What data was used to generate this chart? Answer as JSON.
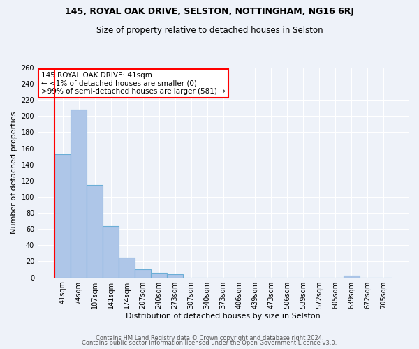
{
  "title": "145, ROYAL OAK DRIVE, SELSTON, NOTTINGHAM, NG16 6RJ",
  "subtitle": "Size of property relative to detached houses in Selston",
  "xlabel": "Distribution of detached houses by size in Selston",
  "ylabel": "Number of detached properties",
  "bar_labels": [
    "41sqm",
    "74sqm",
    "107sqm",
    "141sqm",
    "174sqm",
    "207sqm",
    "240sqm",
    "273sqm",
    "307sqm",
    "340sqm",
    "373sqm",
    "406sqm",
    "439sqm",
    "473sqm",
    "506sqm",
    "539sqm",
    "572sqm",
    "605sqm",
    "639sqm",
    "672sqm",
    "705sqm"
  ],
  "bar_values": [
    153,
    208,
    115,
    64,
    25,
    10,
    6,
    4,
    0,
    0,
    0,
    0,
    0,
    0,
    0,
    0,
    0,
    0,
    2,
    0,
    0
  ],
  "bar_color": "#aec6e8",
  "bar_edge_color": "#6baed6",
  "annotation_line1": "145 ROYAL OAK DRIVE: 41sqm",
  "annotation_line2": "← <1% of detached houses are smaller (0)",
  "annotation_line3": ">99% of semi-detached houses are larger (581) →",
  "annotation_box_color": "white",
  "annotation_box_edge_color": "red",
  "vline_color": "red",
  "ylim": [
    0,
    260
  ],
  "yticks": [
    0,
    20,
    40,
    60,
    80,
    100,
    120,
    140,
    160,
    180,
    200,
    220,
    240,
    260
  ],
  "footer_line1": "Contains HM Land Registry data © Crown copyright and database right 2024.",
  "footer_line2": "Contains public sector information licensed under the Open Government Licence v3.0.",
  "background_color": "#eef2f9",
  "plot_background_color": "#eef2f9",
  "title_fontsize": 9,
  "subtitle_fontsize": 8.5,
  "label_fontsize": 8,
  "tick_fontsize": 7,
  "annotation_fontsize": 7.5,
  "footer_fontsize": 6
}
